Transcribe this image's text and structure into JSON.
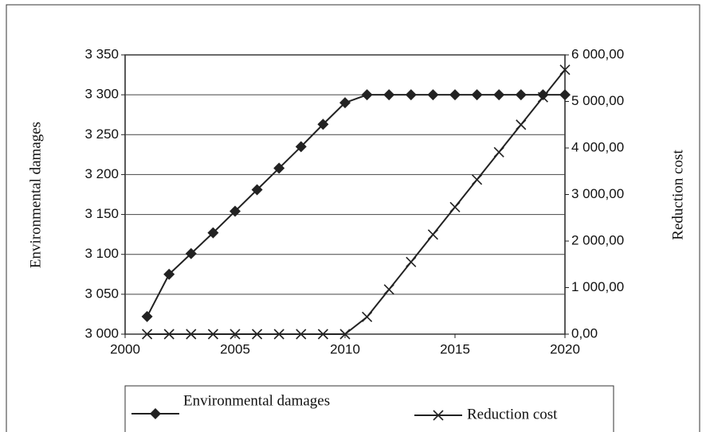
{
  "chart_data": {
    "type": "line",
    "y_label": "Environmental damages",
    "y2_label": "Reduction cost",
    "x": [
      2001,
      2002,
      2003,
      2004,
      2005,
      2006,
      2007,
      2008,
      2009,
      2010,
      2011,
      2012,
      2013,
      2014,
      2015,
      2016,
      2017,
      2018,
      2019,
      2020
    ],
    "series": [
      {
        "name": "Environmental damages",
        "color": "#222222",
        "marker": "diamond",
        "values": [
          3022,
          3075,
          3101,
          3127,
          3154,
          3181,
          3208,
          3235,
          3263,
          3290,
          3300,
          3300,
          3300,
          3300,
          3300,
          3300,
          3300,
          3300,
          3300,
          3300
        ]
      },
      {
        "name": "Reduction cost",
        "color": "#222222",
        "marker": "x",
        "axis": "y2",
        "values": [
          0,
          0,
          0,
          0,
          0,
          0,
          0,
          0,
          0,
          0,
          370,
          960,
          1550,
          2140,
          2730,
          3320,
          3910,
          4500,
          5090,
          5680
        ]
      }
    ],
    "xlim": [
      2000,
      2020
    ],
    "xticks": [
      2000,
      2005,
      2010,
      2015,
      2020
    ],
    "ylim": [
      3000,
      3350
    ],
    "yticks": [
      {
        "value": 3000,
        "label": "3 000"
      },
      {
        "value": 3050,
        "label": "3 050"
      },
      {
        "value": 3100,
        "label": "3 100"
      },
      {
        "value": 3150,
        "label": "3 150"
      },
      {
        "value": 3200,
        "label": "3 200"
      },
      {
        "value": 3250,
        "label": "3 250"
      },
      {
        "value": 3300,
        "label": "3 300"
      },
      {
        "value": 3350,
        "label": "3 350"
      }
    ],
    "y2lim": [
      0,
      6000
    ],
    "y2ticks": [
      {
        "value": 0,
        "label": "0,00"
      },
      {
        "value": 1000,
        "label": "1 000,00"
      },
      {
        "value": 2000,
        "label": "2 000,00"
      },
      {
        "value": 3000,
        "label": "3 000,00"
      },
      {
        "value": 4000,
        "label": "4 000,00"
      },
      {
        "value": 5000,
        "label": "5 000,00"
      },
      {
        "value": 6000,
        "label": "6 000,00"
      }
    ],
    "grid": true,
    "legend": "bottom"
  }
}
